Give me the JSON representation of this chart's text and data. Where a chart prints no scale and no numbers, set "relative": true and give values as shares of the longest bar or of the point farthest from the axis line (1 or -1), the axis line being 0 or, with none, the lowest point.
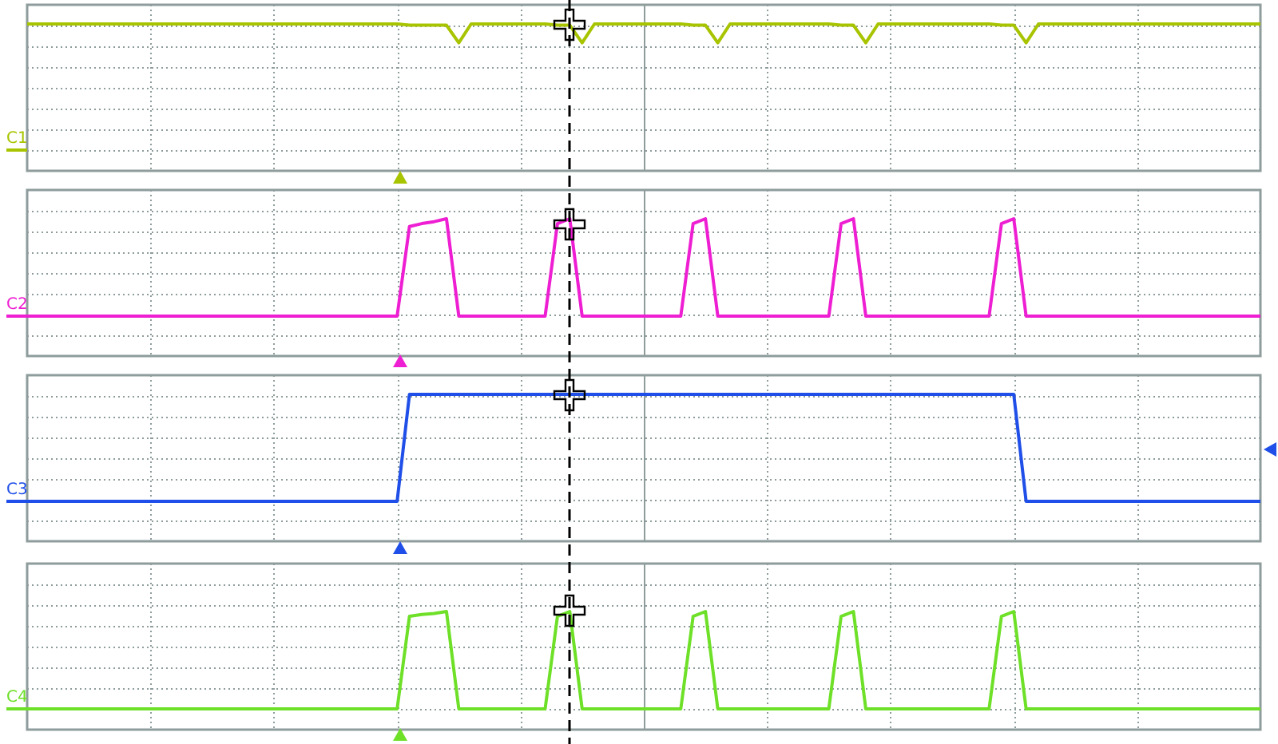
{
  "chart_data": [
    {
      "type": "line",
      "relative": true,
      "grid": true,
      "annotations": [
        "C1"
      ],
      "categories": [
        null,
        null,
        null,
        null,
        null,
        null,
        null,
        null,
        null,
        null,
        null,
        null,
        null,
        null,
        null,
        null,
        null,
        null,
        null,
        null,
        null,
        null,
        null,
        null,
        null,
        null,
        null,
        null,
        null,
        null,
        null,
        null,
        null,
        null,
        null,
        null,
        null,
        null,
        null,
        null,
        null,
        null,
        null,
        null,
        null,
        null,
        null,
        null,
        null,
        null,
        null,
        null,
        null,
        null,
        null,
        null,
        null,
        null,
        null,
        null,
        null,
        null,
        null,
        null,
        null,
        null,
        null,
        null,
        null,
        null,
        null,
        null,
        null,
        null,
        null,
        null,
        null,
        null,
        null,
        null,
        null,
        null,
        null,
        null,
        null,
        null,
        null,
        null,
        null,
        null,
        null,
        null,
        null,
        null,
        null,
        null,
        null,
        null,
        null,
        null,
        null
      ],
      "series": [
        {
          "color": "#a8c400",
          "values": [
            1,
            1,
            1,
            1,
            1,
            1,
            1,
            1,
            1,
            1,
            1,
            1,
            1,
            1,
            1,
            1,
            1,
            1,
            1,
            1,
            1,
            1,
            1,
            1,
            1,
            1,
            1,
            1,
            1,
            1,
            1,
            0.99,
            0.99,
            0.99,
            0.99,
            0.85,
            1,
            1,
            1,
            1,
            1,
            1,
            1,
            0.99,
            0.99,
            0.85,
            1,
            1,
            1,
            1,
            1,
            1,
            1,
            1,
            0.99,
            0.99,
            0.85,
            1,
            1,
            1,
            1,
            1,
            1,
            1,
            1,
            1,
            0.99,
            0.99,
            0.85,
            1,
            1,
            1,
            1,
            1,
            1,
            1,
            1,
            1,
            1,
            0.99,
            0.99,
            0.85,
            1,
            1,
            1,
            1,
            1,
            1,
            1,
            1,
            1,
            1,
            1,
            1,
            1,
            1,
            1,
            1,
            1,
            1,
            1
          ]
        }
      ]
    },
    {
      "type": "line",
      "relative": true,
      "grid": true,
      "annotations": [
        "C2"
      ],
      "categories": [
        null,
        null,
        null,
        null,
        null,
        null,
        null,
        null,
        null,
        null,
        null,
        null,
        null,
        null,
        null,
        null,
        null,
        null,
        null,
        null,
        null,
        null,
        null,
        null,
        null,
        null,
        null,
        null,
        null,
        null,
        null,
        null,
        null,
        null,
        null,
        null,
        null,
        null,
        null,
        null,
        null,
        null,
        null,
        null,
        null,
        null,
        null,
        null,
        null,
        null,
        null,
        null,
        null,
        null,
        null,
        null,
        null,
        null,
        null,
        null,
        null,
        null,
        null,
        null,
        null,
        null,
        null,
        null,
        null,
        null,
        null,
        null,
        null,
        null,
        null,
        null,
        null,
        null,
        null,
        null,
        null,
        null,
        null,
        null,
        null,
        null,
        null,
        null,
        null,
        null,
        null,
        null,
        null,
        null,
        null,
        null,
        null,
        null,
        null,
        null,
        null
      ],
      "series": [
        {
          "color": "#ee1ed2",
          "values": [
            0,
            0,
            0,
            0,
            0,
            0,
            0,
            0,
            0,
            0,
            0,
            0,
            0,
            0,
            0,
            0,
            0,
            0,
            0,
            0,
            0,
            0,
            0,
            0,
            0,
            0,
            0,
            0,
            0,
            0,
            0,
            0.92,
            0.95,
            0.97,
            1,
            0,
            0,
            0,
            0,
            0,
            0,
            0,
            0,
            0.95,
            1,
            0,
            0,
            0,
            0,
            0,
            0,
            0,
            0,
            0,
            0.95,
            1,
            0,
            0,
            0,
            0,
            0,
            0,
            0,
            0,
            0,
            0,
            0.95,
            1,
            0,
            0,
            0,
            0,
            0,
            0,
            0,
            0,
            0,
            0,
            0,
            0.95,
            1,
            0,
            0,
            0,
            0,
            0,
            0,
            0,
            0,
            0,
            0,
            0,
            0,
            0,
            0,
            0,
            0,
            0,
            0,
            0,
            0
          ]
        }
      ]
    },
    {
      "type": "line",
      "relative": true,
      "grid": true,
      "annotations": [
        "C3"
      ],
      "categories": [
        null,
        null,
        null,
        null,
        null,
        null,
        null,
        null,
        null,
        null,
        null,
        null,
        null,
        null,
        null,
        null,
        null,
        null,
        null,
        null,
        null,
        null,
        null,
        null,
        null,
        null,
        null,
        null,
        null,
        null,
        null,
        null,
        null,
        null,
        null,
        null,
        null,
        null,
        null,
        null,
        null,
        null,
        null,
        null,
        null,
        null,
        null,
        null,
        null,
        null,
        null,
        null,
        null,
        null,
        null,
        null,
        null,
        null,
        null,
        null,
        null,
        null,
        null,
        null,
        null,
        null,
        null,
        null,
        null,
        null,
        null,
        null,
        null,
        null,
        null,
        null,
        null,
        null,
        null,
        null,
        null,
        null,
        null,
        null,
        null,
        null,
        null,
        null,
        null,
        null,
        null,
        null,
        null,
        null,
        null,
        null,
        null,
        null,
        null,
        null,
        null
      ],
      "series": [
        {
          "color": "#1f4fe8",
          "values": [
            0,
            0,
            0,
            0,
            0,
            0,
            0,
            0,
            0,
            0,
            0,
            0,
            0,
            0,
            0,
            0,
            0,
            0,
            0,
            0,
            0,
            0,
            0,
            0,
            0,
            0,
            0,
            0,
            0,
            0,
            0,
            1,
            1,
            1,
            1,
            1,
            1,
            1,
            1,
            1,
            1,
            1,
            1,
            1,
            1,
            1,
            1,
            1,
            1,
            1,
            1,
            1,
            1,
            1,
            1,
            1,
            1,
            1,
            1,
            1,
            1,
            1,
            1,
            1,
            1,
            1,
            1,
            1,
            1,
            1,
            1,
            1,
            1,
            1,
            1,
            1,
            1,
            1,
            1,
            1,
            1,
            0,
            0,
            0,
            0,
            0,
            0,
            0,
            0,
            0,
            0,
            0,
            0,
            0,
            0,
            0,
            0,
            0,
            0,
            0,
            0
          ]
        }
      ]
    },
    {
      "type": "line",
      "relative": true,
      "grid": true,
      "annotations": [
        "C4"
      ],
      "categories": [
        null,
        null,
        null,
        null,
        null,
        null,
        null,
        null,
        null,
        null,
        null,
        null,
        null,
        null,
        null,
        null,
        null,
        null,
        null,
        null,
        null,
        null,
        null,
        null,
        null,
        null,
        null,
        null,
        null,
        null,
        null,
        null,
        null,
        null,
        null,
        null,
        null,
        null,
        null,
        null,
        null,
        null,
        null,
        null,
        null,
        null,
        null,
        null,
        null,
        null,
        null,
        null,
        null,
        null,
        null,
        null,
        null,
        null,
        null,
        null,
        null,
        null,
        null,
        null,
        null,
        null,
        null,
        null,
        null,
        null,
        null,
        null,
        null,
        null,
        null,
        null,
        null,
        null,
        null,
        null,
        null,
        null,
        null,
        null,
        null,
        null,
        null,
        null,
        null,
        null,
        null,
        null,
        null,
        null,
        null,
        null,
        null,
        null,
        null,
        null,
        null
      ],
      "series": [
        {
          "color": "#6ee028",
          "values": [
            0,
            0,
            0,
            0,
            0,
            0,
            0,
            0,
            0,
            0,
            0,
            0,
            0,
            0,
            0,
            0,
            0,
            0,
            0,
            0,
            0,
            0,
            0,
            0,
            0,
            0,
            0,
            0,
            0,
            0,
            0,
            0.95,
            0.97,
            0.98,
            1,
            0,
            0,
            0,
            0,
            0,
            0,
            0,
            0,
            0.95,
            1,
            0,
            0,
            0,
            0,
            0,
            0,
            0,
            0,
            0,
            0.95,
            1,
            0,
            0,
            0,
            0,
            0,
            0,
            0,
            0,
            0,
            0,
            0.95,
            1,
            0,
            0,
            0,
            0,
            0,
            0,
            0,
            0,
            0,
            0,
            0,
            0.95,
            1,
            0,
            0,
            0,
            0,
            0,
            0,
            0,
            0,
            0,
            0,
            0,
            0,
            0,
            0,
            0,
            0,
            0,
            0,
            0,
            0
          ]
        }
      ]
    }
  ]
}
